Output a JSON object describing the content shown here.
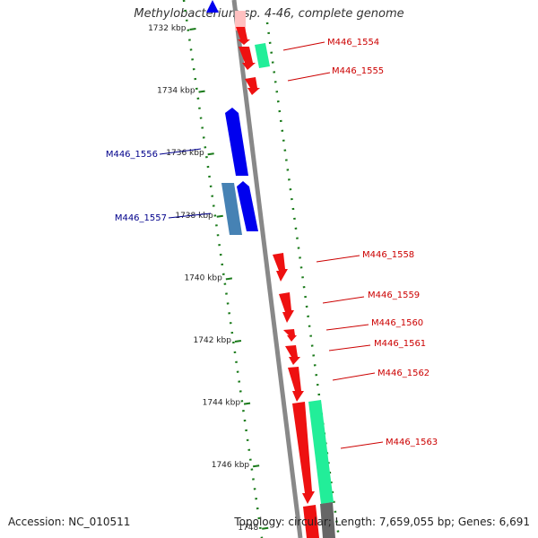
{
  "title": "Methylobacterium sp. 4-46, complete genome",
  "footer": {
    "accession": "Accession: NC_010511",
    "summary": "Topology: circular; Length: 7,659,055 bp; Genes: 6,691"
  },
  "colors": {
    "backbone": "#777777",
    "dots": "#1a7a1a",
    "forward_gene": "#ff0000",
    "reverse_gene": "#0000ee",
    "rna": "#22ee99",
    "light_blue_gene": "#4682b4",
    "reverse_label": "#00008b",
    "forward_label": "#cc0000"
  },
  "axis_ticks": [
    {
      "label": "1732 kbp",
      "y": 1732
    },
    {
      "label": "1734 kbp",
      "y": 1734
    },
    {
      "label": "1736 kbp",
      "y": 1736
    },
    {
      "label": "1738 kbp",
      "y": 1738
    },
    {
      "label": "1740 kbp",
      "y": 1740
    },
    {
      "label": "1742 kbp",
      "y": 1742
    },
    {
      "label": "1744 kbp",
      "y": 1744
    },
    {
      "label": "1746 kbp",
      "y": 1746
    },
    {
      "label": "1748",
      "y": 1748
    }
  ],
  "genes": [
    {
      "id": "M446_1554",
      "strand": "rev-rna",
      "label": "M446_1554"
    },
    {
      "id": "M446_1555",
      "strand": "fwd",
      "label": "M446_1555"
    },
    {
      "id": "M446_1556",
      "strand": "rev",
      "label": "M446_1556"
    },
    {
      "id": "M446_1557",
      "strand": "rev",
      "label": "M446_1557"
    },
    {
      "id": "M446_1558",
      "strand": "fwd",
      "label": "M446_1558"
    },
    {
      "id": "M446_1559",
      "strand": "fwd",
      "label": "M446_1559"
    },
    {
      "id": "M446_1560",
      "strand": "fwd",
      "label": "M446_1560"
    },
    {
      "id": "M446_1561",
      "strand": "fwd",
      "label": "M446_1561"
    },
    {
      "id": "M446_1562",
      "strand": "fwd",
      "label": "M446_1562"
    },
    {
      "id": "M446_1563",
      "strand": "fwd",
      "label": "M446_1563"
    }
  ]
}
